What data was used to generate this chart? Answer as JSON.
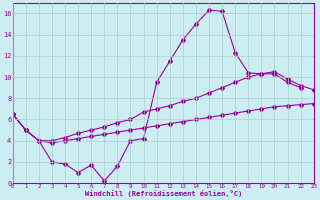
{
  "xlabel": "Windchill (Refroidissement éolien,°C)",
  "bg_color": "#cceef2",
  "line_color": "#990099",
  "grid_color": "#aacccc",
  "xlim": [
    0,
    23
  ],
  "ylim": [
    0,
    17
  ],
  "xticks": [
    0,
    1,
    2,
    3,
    4,
    5,
    6,
    7,
    8,
    9,
    10,
    11,
    12,
    13,
    14,
    15,
    16,
    17,
    18,
    19,
    20,
    21,
    22,
    23
  ],
  "yticks": [
    0,
    2,
    4,
    6,
    8,
    10,
    12,
    14,
    16
  ],
  "line1_x": [
    0,
    1,
    2,
    3,
    4,
    5,
    6,
    7,
    8,
    9,
    10,
    11,
    12,
    13,
    14,
    15,
    16,
    17,
    18,
    19,
    20,
    21,
    22
  ],
  "line1_y": [
    6.5,
    5.0,
    4.0,
    2.0,
    1.8,
    1.0,
    1.7,
    0.2,
    1.6,
    4.0,
    4.2,
    9.5,
    11.5,
    13.5,
    15.0,
    16.3,
    16.2,
    12.3,
    10.4,
    10.3,
    10.3,
    9.5,
    9.0
  ],
  "line2_x": [
    0,
    1,
    2,
    3,
    4,
    5,
    6,
    7,
    8,
    9,
    10,
    11,
    12,
    13,
    14,
    15,
    16,
    17,
    18,
    19,
    20,
    21,
    22,
    23
  ],
  "line2_y": [
    6.5,
    5.0,
    4.0,
    4.0,
    4.3,
    4.7,
    5.0,
    5.3,
    5.7,
    6.0,
    6.7,
    7.0,
    7.3,
    7.7,
    8.0,
    8.5,
    9.0,
    9.5,
    10.0,
    10.3,
    10.5,
    9.8,
    9.2,
    8.8
  ],
  "line3_x": [
    0,
    1,
    2,
    3,
    4,
    5,
    6,
    7,
    8,
    9,
    10,
    11,
    12,
    13,
    14,
    15,
    16,
    17,
    18,
    19,
    20,
    21,
    22,
    23
  ],
  "line3_y": [
    6.5,
    5.0,
    4.0,
    3.8,
    4.0,
    4.2,
    4.4,
    4.6,
    4.8,
    5.0,
    5.2,
    5.4,
    5.6,
    5.8,
    6.0,
    6.2,
    6.4,
    6.6,
    6.8,
    7.0,
    7.2,
    7.3,
    7.4,
    7.5
  ]
}
